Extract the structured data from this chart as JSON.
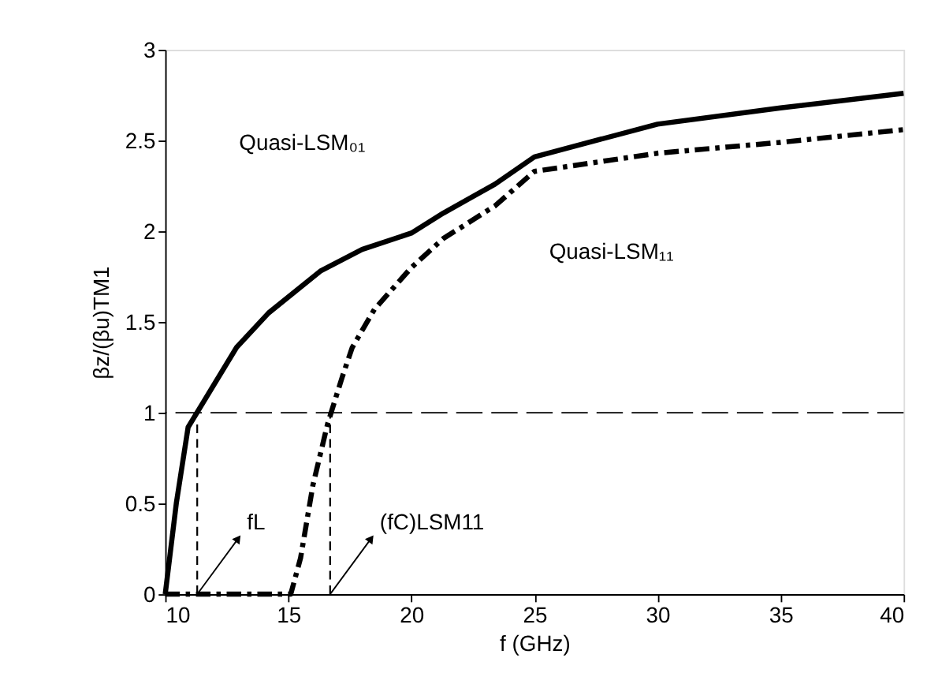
{
  "chart_data": {
    "type": "line",
    "xlabel": "f (GHz)",
    "ylabel": "βz/(βu)TM1",
    "xlim": [
      10,
      40
    ],
    "xticks": [
      10,
      15,
      20,
      25,
      30,
      35,
      40
    ],
    "ylim": [
      0,
      3
    ],
    "yticks": [
      0,
      0.5,
      1,
      1.5,
      2,
      2.5,
      3
    ],
    "grid": false,
    "legend": false,
    "marker": "none",
    "series": [
      {
        "color": "#000000",
        "line_style": "solid",
        "x": [
          10,
          10.45,
          10.93,
          12.9,
          14.2,
          16.3,
          18,
          20,
          21.3,
          23.4,
          25,
          30,
          35,
          40
        ],
        "values": [
          0,
          0.5,
          0.92,
          1.36,
          1.55,
          1.78,
          1.9,
          1.99,
          2.1,
          2.26,
          2.41,
          2.59,
          2.68,
          2.76
        ]
      },
      {
        "color": "#000000",
        "line_style": "dashdot",
        "x": [
          10,
          15.1,
          15.5,
          16,
          16.6,
          17.2,
          17.6,
          18.5,
          20,
          21.3,
          23.4,
          25,
          30,
          35,
          40
        ],
        "values": [
          0,
          0,
          0.2,
          0.6,
          0.94,
          1.2,
          1.36,
          1.57,
          1.8,
          1.96,
          2.14,
          2.33,
          2.43,
          2.49,
          2.56
        ]
      },
      {
        "color": "#000000",
        "line_style": "dashed",
        "x": [
          11.3,
          11.3
        ],
        "values": [
          0,
          0.95
        ]
      },
      {
        "color": "#000000",
        "line_style": "dashed",
        "x": [
          16.7,
          16.7
        ],
        "values": [
          0,
          0.98
        ]
      }
    ],
    "ref_lines": [
      {
        "axis": "y",
        "value": 1,
        "color": "#000000",
        "line_style": "dashed"
      }
    ],
    "annotations": [
      "Quasi-LSM₀₁",
      "Quasi-LSM₁₁",
      {
        "text": "fL",
        "x": 11.3,
        "y": 0
      },
      {
        "text": "(fC)LSM11",
        "x": 16.7,
        "y": 0
      }
    ]
  }
}
